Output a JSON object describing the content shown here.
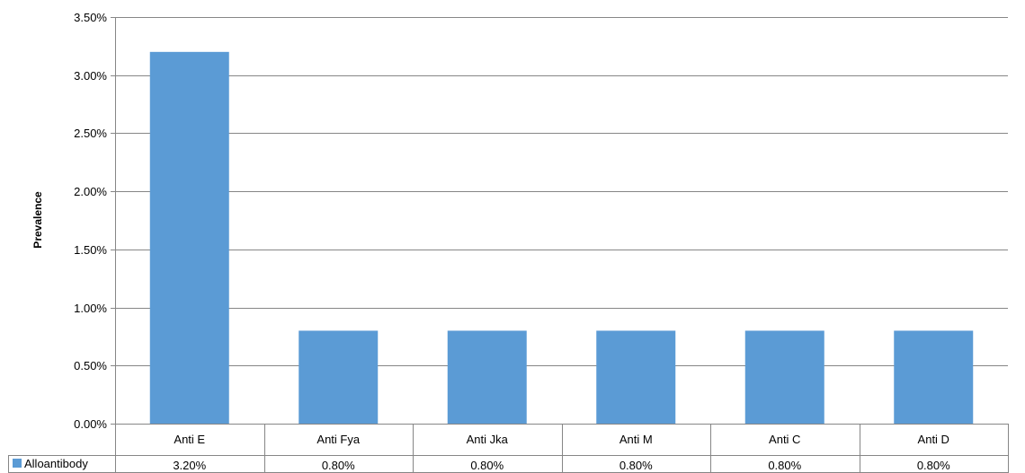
{
  "chart_data": {
    "type": "bar",
    "categories": [
      "Anti E",
      "Anti Fya",
      "Anti Jka",
      "Anti M",
      "Anti C",
      "Anti D"
    ],
    "series": [
      {
        "name": "Alloantibody",
        "values": [
          0.032,
          0.008,
          0.008,
          0.008,
          0.008,
          0.008
        ],
        "value_labels": [
          "3.20%",
          "0.80%",
          "0.80%",
          "0.80%",
          "0.80%",
          "0.80%"
        ],
        "color": "#5b9bd5"
      }
    ],
    "title": "",
    "xlabel": "",
    "ylabel": "Prevalence",
    "ylim": [
      0,
      0.035
    ],
    "y_ticks": [
      0,
      0.005,
      0.01,
      0.015,
      0.02,
      0.025,
      0.03,
      0.035
    ],
    "y_tick_labels": [
      "0.00%",
      "0.50%",
      "1.00%",
      "1.50%",
      "2.00%",
      "2.50%",
      "3.00%",
      "3.50%"
    ],
    "grid": true,
    "legend": "bottom-left, inside data table",
    "data_table": true
  }
}
